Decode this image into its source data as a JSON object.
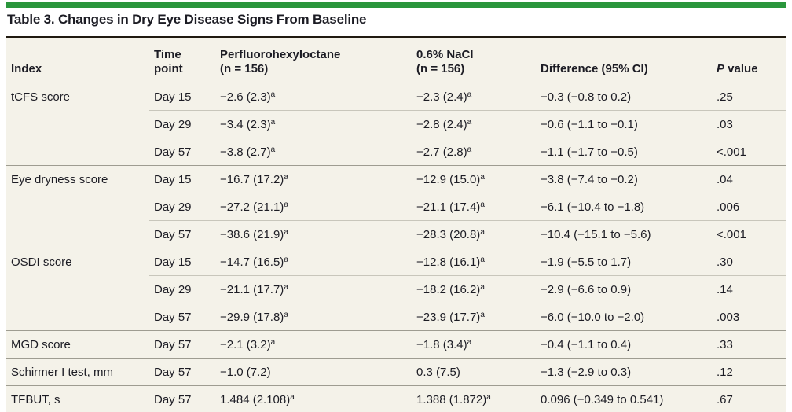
{
  "accent_color": "#2a963c",
  "background_color": "#f4f2e9",
  "title": "Table 3. Changes in Dry Eye Disease Signs From Baseline",
  "table": {
    "header": {
      "index": "Index",
      "time": "Time point",
      "pfho_label": "Perfluorohexyloctane",
      "pfho_n": "(n = 156)",
      "nacl_label": "0.6% NaCl",
      "nacl_n": "(n = 156)",
      "diff": "Difference (95% CI)",
      "p_italic": "P",
      "p_rest": " value"
    },
    "footnote_marker": "a",
    "rows": [
      {
        "index": "tCFS score",
        "time": "Day 15",
        "pfho": "−2.6 (2.3)",
        "pfho_sup": "a",
        "nacl": "−2.3 (2.4)",
        "nacl_sup": "a",
        "diff": "−0.3 (−0.8 to 0.2)",
        "p": ".25"
      },
      {
        "index": "",
        "time": "Day 29",
        "pfho": "−3.4 (2.3)",
        "pfho_sup": "a",
        "nacl": "−2.8 (2.4)",
        "nacl_sup": "a",
        "diff": "−0.6 (−1.1 to −0.1)",
        "p": ".03"
      },
      {
        "index": "",
        "time": "Day 57",
        "pfho": "−3.8 (2.7)",
        "pfho_sup": "a",
        "nacl": "−2.7 (2.8)",
        "nacl_sup": "a",
        "diff": "−1.1 (−1.7 to −0.5)",
        "p": "<.001"
      },
      {
        "index": "Eye dryness score",
        "time": "Day 15",
        "pfho": "−16.7 (17.2)",
        "pfho_sup": "a",
        "nacl": "−12.9 (15.0)",
        "nacl_sup": "a",
        "diff": "−3.8 (−7.4 to −0.2)",
        "p": ".04"
      },
      {
        "index": "",
        "time": "Day 29",
        "pfho": "−27.2 (21.1)",
        "pfho_sup": "a",
        "nacl": "−21.1 (17.4)",
        "nacl_sup": "a",
        "diff": "−6.1 (−10.4 to −1.8)",
        "p": ".006"
      },
      {
        "index": "",
        "time": "Day 57",
        "pfho": "−38.6 (21.9)",
        "pfho_sup": "a",
        "nacl": "−28.3 (20.8)",
        "nacl_sup": "a",
        "diff": "−10.4 (−15.1 to −5.6)",
        "p": "<.001"
      },
      {
        "index": "OSDI score",
        "time": "Day 15",
        "pfho": "−14.7 (16.5)",
        "pfho_sup": "a",
        "nacl": "−12.8 (16.1)",
        "nacl_sup": "a",
        "diff": "−1.9 (−5.5 to 1.7)",
        "p": ".30"
      },
      {
        "index": "",
        "time": "Day 29",
        "pfho": "−21.1 (17.7)",
        "pfho_sup": "a",
        "nacl": "−18.2 (16.2)",
        "nacl_sup": "a",
        "diff": "−2.9 (−6.6 to 0.9)",
        "p": ".14"
      },
      {
        "index": "",
        "time": "Day 57",
        "pfho": "−29.9 (17.8)",
        "pfho_sup": "a",
        "nacl": "−23.9 (17.7)",
        "nacl_sup": "a",
        "diff": "−6.0 (−10.0 to −2.0)",
        "p": ".003"
      },
      {
        "index": "MGD score",
        "time": "Day 57",
        "pfho": "−2.1 (3.2)",
        "pfho_sup": "a",
        "nacl": "−1.8 (3.4)",
        "nacl_sup": "a",
        "diff": "−0.4 (−1.1 to 0.4)",
        "p": ".33"
      },
      {
        "index": "Schirmer I test, mm",
        "time": "Day 57",
        "pfho": "−1.0 (7.2)",
        "nacl": "0.3 (7.5)",
        "diff": "−1.3 (−2.9 to 0.3)",
        "p": ".12"
      },
      {
        "index": "TFBUT, s",
        "time": "Day 57",
        "pfho": "1.484 (2.108)",
        "pfho_sup": "a",
        "nacl": "1.388 (1.872)",
        "nacl_sup": "a",
        "diff": "0.096 (−0.349 to 0.541)",
        "p": ".67"
      }
    ]
  }
}
